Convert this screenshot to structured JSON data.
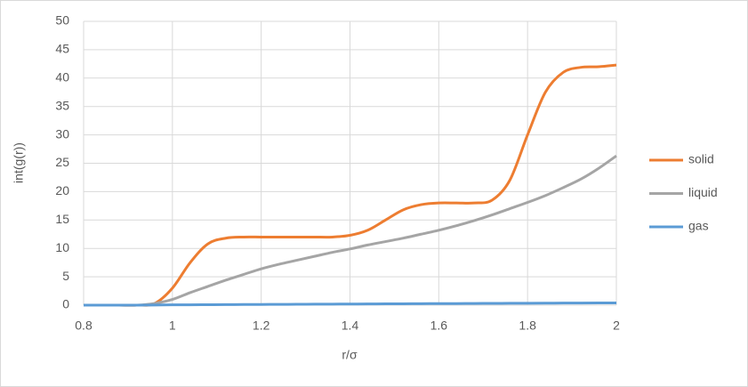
{
  "chart_data": {
    "type": "line",
    "x_label": "r/σ",
    "y_label": "int(g(r))",
    "x": [
      0.8,
      0.84,
      0.88,
      0.92,
      0.96,
      1.0,
      1.04,
      1.08,
      1.12,
      1.16,
      1.2,
      1.24,
      1.28,
      1.32,
      1.36,
      1.4,
      1.44,
      1.48,
      1.52,
      1.56,
      1.6,
      1.64,
      1.68,
      1.72,
      1.76,
      1.8,
      1.84,
      1.88,
      1.92,
      1.96,
      2.0
    ],
    "series": [
      {
        "name": "solid",
        "color": "#ed7d31",
        "values": [
          0,
          0,
          0,
          0,
          0.3,
          3,
          7.5,
          10.8,
          11.8,
          12,
          12,
          12,
          12,
          12,
          12,
          12.3,
          13.2,
          15,
          16.8,
          17.7,
          18,
          18,
          18,
          18.5,
          22,
          30,
          37.5,
          41,
          41.9,
          42,
          42.3
        ]
      },
      {
        "name": "liquid",
        "color": "#a5a5a5",
        "values": [
          0,
          0,
          0,
          0,
          0.3,
          1,
          2.2,
          3.3,
          4.4,
          5.4,
          6.4,
          7.2,
          7.9,
          8.6,
          9.3,
          9.9,
          10.6,
          11.2,
          11.8,
          12.5,
          13.2,
          14,
          14.9,
          15.9,
          17,
          18.1,
          19.3,
          20.7,
          22.2,
          24.1,
          26.3
        ]
      },
      {
        "name": "gas",
        "color": "#5b9bd5",
        "values": [
          0,
          0,
          0,
          0,
          0.02,
          0.05,
          0.06,
          0.08,
          0.1,
          0.11,
          0.12,
          0.14,
          0.15,
          0.17,
          0.18,
          0.2,
          0.21,
          0.23,
          0.24,
          0.26,
          0.27,
          0.28,
          0.3,
          0.31,
          0.33,
          0.34,
          0.35,
          0.37,
          0.38,
          0.39,
          0.4
        ]
      }
    ],
    "xlim": [
      0.8,
      2
    ],
    "xticks": [
      0.8,
      1,
      1.2,
      1.4,
      1.6,
      1.8,
      2
    ],
    "ylim": [
      0,
      50
    ],
    "yticks": [
      0,
      5,
      10,
      15,
      20,
      25,
      30,
      35,
      40,
      45,
      50
    ],
    "grid": true,
    "legend": "right"
  }
}
